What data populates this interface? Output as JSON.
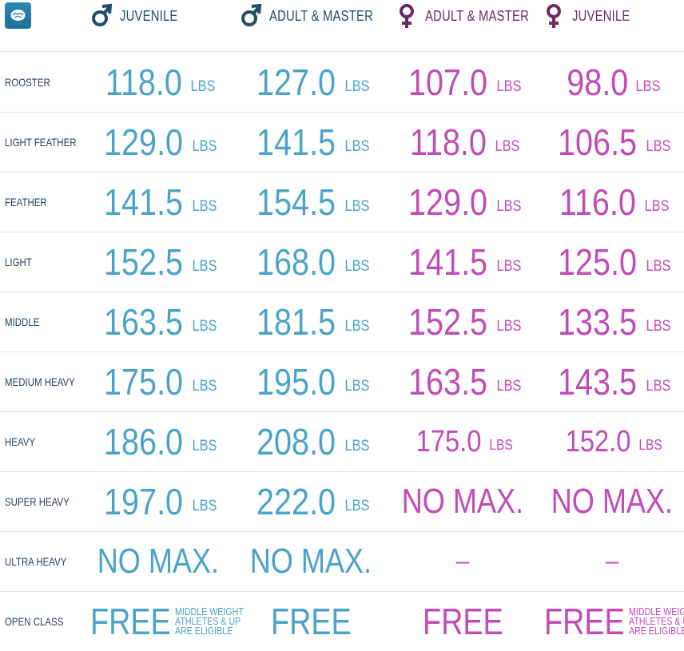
{
  "header": {
    "columns": [
      {
        "label": "JUVENILE",
        "gender": "male"
      },
      {
        "label": "ADULT & MASTER",
        "gender": "male"
      },
      {
        "label": "ADULT & MASTER",
        "gender": "female"
      },
      {
        "label": "JUVENILE",
        "gender": "female"
      }
    ]
  },
  "unit": "LBS",
  "rows": [
    {
      "label": "ROOSTER",
      "values": [
        "118.0",
        "127.0",
        "107.0",
        "98.0"
      ]
    },
    {
      "label": "LIGHT FEATHER",
      "values": [
        "129.0",
        "141.5",
        "118.0",
        "106.5"
      ]
    },
    {
      "label": "FEATHER",
      "values": [
        "141.5",
        "154.5",
        "129.0",
        "116.0"
      ]
    },
    {
      "label": "LIGHT",
      "values": [
        "152.5",
        "168.0",
        "141.5",
        "125.0"
      ]
    },
    {
      "label": "MIDDLE",
      "values": [
        "163.5",
        "181.5",
        "152.5",
        "133.5"
      ]
    },
    {
      "label": "MEDIUM HEAVY",
      "values": [
        "175.0",
        "195.0",
        "163.5",
        "143.5"
      ]
    },
    {
      "label": "HEAVY",
      "values": [
        "186.0",
        "208.0",
        "175.0",
        "152.0"
      ]
    },
    {
      "label": "SUPER HEAVY",
      "values": [
        "197.0",
        "222.0",
        "NO MAX.",
        "NO MAX."
      ]
    },
    {
      "label": "ULTRA HEAVY",
      "values": [
        "NO MAX.",
        "NO MAX.",
        "–",
        "–"
      ]
    }
  ],
  "open_class": {
    "label": "OPEN CLASS",
    "free": "FREE",
    "note_lines": [
      "MIDDLE WEIGHT",
      "ATHLETES & UP",
      "ARE ELIGIBLE"
    ]
  },
  "colors": {
    "male": "#4aa3c8",
    "female": "#c24bb8",
    "male_header": "#1f4e66",
    "female_header": "#6b2a6a"
  },
  "icons": {
    "logo": "brain-logo-icon",
    "male": "male-symbol-icon",
    "female": "female-symbol-icon"
  }
}
